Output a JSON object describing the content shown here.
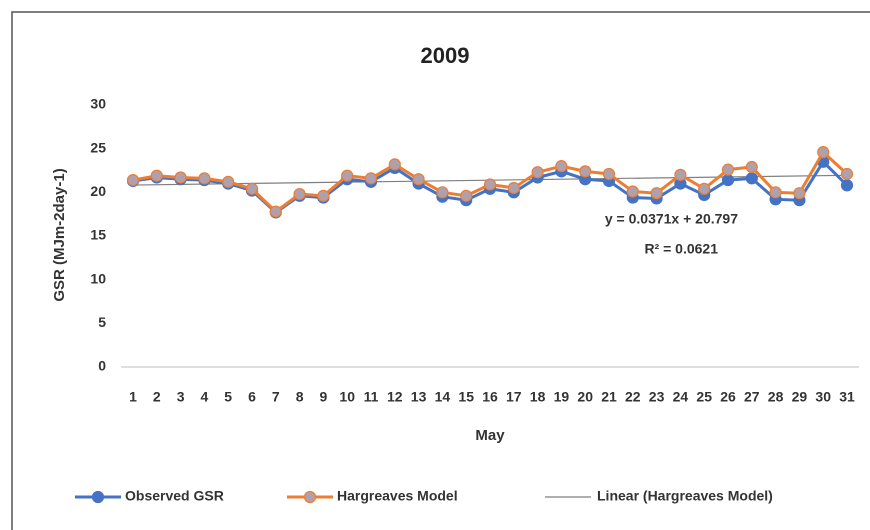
{
  "chart_data": {
    "type": "line",
    "title": "2009",
    "x_label": "May",
    "y_label": "GSR (MJm-2day-1)",
    "categories": [
      "1",
      "2",
      "3",
      "4",
      "5",
      "6",
      "7",
      "8",
      "9",
      "10",
      "11",
      "12",
      "13",
      "14",
      "15",
      "16",
      "17",
      "18",
      "19",
      "20",
      "21",
      "22",
      "23",
      "24",
      "25",
      "26",
      "27",
      "28",
      "29",
      "30",
      "31"
    ],
    "series": [
      {
        "name": "Observed GSR",
        "color": "#4472c4",
        "marker_color": "#4472c4",
        "values": [
          21.3,
          21.7,
          21.5,
          21.4,
          21.0,
          20.2,
          17.7,
          19.6,
          19.4,
          21.5,
          21.2,
          22.8,
          21.0,
          19.5,
          19.1,
          20.4,
          20.0,
          21.7,
          22.4,
          21.5,
          21.3,
          19.4,
          19.3,
          21.0,
          19.7,
          21.4,
          21.6,
          19.2,
          19.1,
          23.5,
          20.8
        ]
      },
      {
        "name": "Hargreaves Model",
        "color": "#ed7d31",
        "marker_color": "#b0a0ab",
        "values": [
          21.4,
          21.9,
          21.7,
          21.6,
          21.2,
          20.4,
          17.8,
          19.8,
          19.6,
          21.9,
          21.6,
          23.2,
          21.5,
          20.0,
          19.6,
          20.9,
          20.5,
          22.3,
          23.0,
          22.4,
          22.1,
          20.1,
          19.9,
          22.0,
          20.4,
          22.6,
          22.9,
          20.0,
          19.9,
          24.6,
          22.1
        ]
      }
    ],
    "trendline": {
      "name": "Linear (Hargreaves Model)",
      "color": "#7f7f7f",
      "slope": 0.0371,
      "intercept": 20.797,
      "equation": "y = 0.0371x + 20.797",
      "r2_label": "R² = 0.0621"
    },
    "ylim": [
      0,
      30
    ],
    "yticks": [
      0,
      5,
      10,
      15,
      20,
      25,
      30
    ],
    "grid": false,
    "legend": "bottom"
  }
}
